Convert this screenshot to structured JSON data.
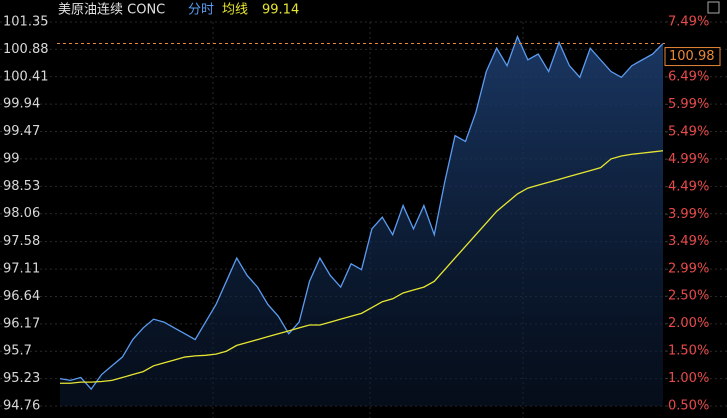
{
  "chart_data": {
    "type": "line",
    "title": "美原油连续 CONC",
    "mode_label": "分时",
    "avg_label": "均线",
    "ylim": [
      94.76,
      101.35
    ],
    "yticks": [
      94.76,
      95.23,
      95.7,
      96.17,
      96.64,
      97.11,
      97.58,
      98.06,
      98.53,
      99.0,
      99.47,
      99.94,
      100.41,
      100.88,
      101.35
    ],
    "y2lim": [
      0.5,
      7.49
    ],
    "y2ticks": [
      {
        "value": 0.5,
        "label": "0.50%"
      },
      {
        "value": 1.0,
        "label": "1.00%"
      },
      {
        "value": 1.5,
        "label": "1.50%"
      },
      {
        "value": 2.0,
        "label": "2.00%"
      },
      {
        "value": 2.5,
        "label": "2.50%"
      },
      {
        "value": 2.99,
        "label": "2.99%"
      },
      {
        "value": 3.49,
        "label": "3.49%"
      },
      {
        "value": 3.99,
        "label": "3.99%"
      },
      {
        "value": 4.49,
        "label": "4.49%"
      },
      {
        "value": 4.99,
        "label": "4.99%"
      },
      {
        "value": 5.49,
        "label": "5.49%"
      },
      {
        "value": 5.99,
        "label": "5.99%"
      },
      {
        "value": 6.49,
        "label": "6.49%"
      },
      {
        "value": 7.49,
        "label": "7.49%"
      }
    ],
    "grid": true,
    "series": [
      {
        "name": "分时",
        "color": "#5b9bf0",
        "values": [
          95.23,
          95.2,
          95.25,
          95.05,
          95.3,
          95.45,
          95.6,
          95.9,
          96.1,
          96.25,
          96.2,
          96.1,
          96.0,
          95.9,
          96.2,
          96.5,
          96.9,
          97.3,
          97.0,
          96.8,
          96.5,
          96.3,
          96.0,
          96.2,
          96.9,
          97.3,
          97.0,
          96.8,
          97.2,
          97.1,
          97.8,
          98.0,
          97.7,
          98.2,
          97.8,
          98.2,
          97.7,
          98.6,
          99.4,
          99.3,
          99.8,
          100.5,
          100.9,
          100.6,
          101.1,
          100.7,
          100.8,
          100.5,
          101.0,
          100.6,
          100.4,
          100.9,
          100.7,
          100.5,
          100.4,
          100.6,
          100.7,
          100.8,
          100.98
        ]
      },
      {
        "name": "均线",
        "color": "#e6e632",
        "values": [
          95.15,
          95.15,
          95.17,
          95.17,
          95.18,
          95.2,
          95.25,
          95.3,
          95.35,
          95.45,
          95.5,
          95.55,
          95.6,
          95.62,
          95.63,
          95.65,
          95.7,
          95.8,
          95.85,
          95.9,
          95.95,
          96.0,
          96.05,
          96.1,
          96.15,
          96.15,
          96.2,
          96.25,
          96.3,
          96.35,
          96.45,
          96.55,
          96.6,
          96.7,
          96.75,
          96.8,
          96.9,
          97.1,
          97.3,
          97.5,
          97.7,
          97.9,
          98.1,
          98.25,
          98.4,
          98.5,
          98.55,
          98.6,
          98.65,
          98.7,
          98.75,
          98.8,
          98.85,
          99.0,
          99.05,
          99.08,
          99.1,
          99.12,
          99.14
        ]
      }
    ]
  }
}
